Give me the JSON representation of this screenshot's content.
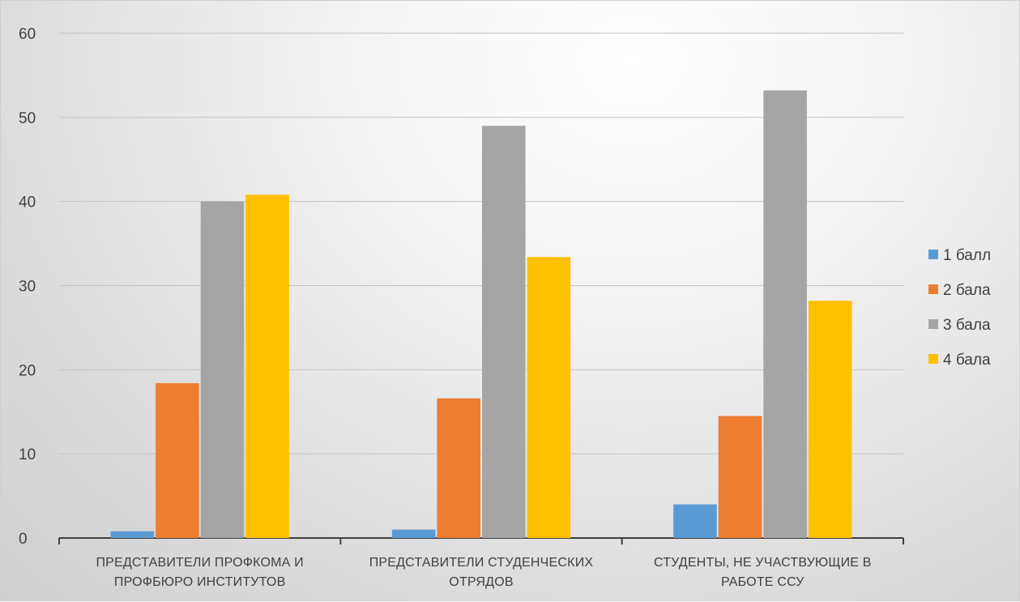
{
  "chart_data": {
    "type": "bar",
    "title": "",
    "xlabel": "",
    "ylabel": "",
    "ylim": [
      0,
      60
    ],
    "yticks": [
      0,
      10,
      20,
      30,
      40,
      50,
      60
    ],
    "grid": true,
    "legend_position": "right",
    "categories": [
      [
        "ПРЕДСТАВИТЕЛИ ПРОФКОМА И",
        "ПРОФБЮРО ИНСТИТУТОВ"
      ],
      [
        "ПРЕДСТАВИТЕЛИ СТУДЕНЧЕСКИХ",
        "ОТРЯДОВ"
      ],
      [
        "СТУДЕНТЫ, НЕ УЧАСТВУЮЩИЕ В",
        "РАБОТЕ ССУ"
      ]
    ],
    "series": [
      {
        "name": "1 балл",
        "color": "#5b9bd5",
        "values": [
          0.8,
          1.0,
          4.0
        ]
      },
      {
        "name": "2 бала",
        "color": "#ed7d31",
        "values": [
          18.4,
          16.6,
          14.5
        ]
      },
      {
        "name": "3 бала",
        "color": "#a5a5a5",
        "values": [
          40.0,
          49.0,
          53.2
        ]
      },
      {
        "name": "4 бала",
        "color": "#ffc000",
        "values": [
          40.8,
          33.4,
          28.2
        ]
      }
    ]
  }
}
